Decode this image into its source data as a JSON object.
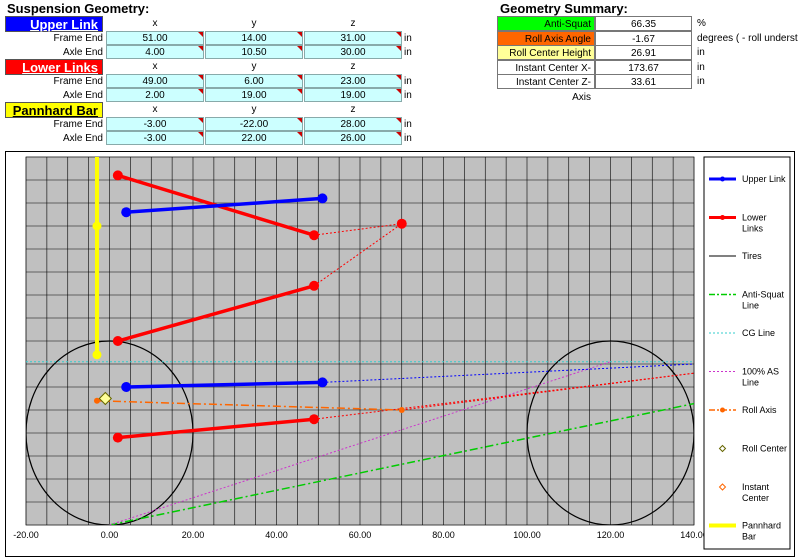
{
  "sheet": {
    "title": "Suspension Geometry:",
    "summary_title": "Geometry Summary:",
    "col_headers": [
      "x",
      "y",
      "z"
    ],
    "unit_in": "in",
    "upper_link": {
      "label": "Upper Link",
      "color": "#0000ff",
      "frame_label": "Frame End",
      "axle_label": "Axle End",
      "frame": [
        "51.00",
        "14.00",
        "31.00"
      ],
      "axle": [
        "4.00",
        "10.50",
        "30.00"
      ]
    },
    "lower_links": {
      "label": "Lower Links",
      "color": "#ff0000",
      "frame_label": "Frame End",
      "axle_label": "Axle End",
      "frame": [
        "49.00",
        "6.00",
        "23.00"
      ],
      "axle": [
        "2.00",
        "19.00",
        "19.00"
      ]
    },
    "pannhard": {
      "label": "Pannhard Bar",
      "color": "#ffff00",
      "frame_label": "Frame End",
      "axle_label": "Axle End",
      "frame": [
        "-3.00",
        "-22.00",
        "28.00"
      ],
      "axle": [
        "-3.00",
        "22.00",
        "26.00"
      ]
    },
    "summary": [
      {
        "label": "Anti-Squat",
        "value": "66.35",
        "unit": "%",
        "color": "#00ff00"
      },
      {
        "label": "Roll Axis Angle",
        "value": "-1.67",
        "unit": "degrees ( - roll underst",
        "color": "#ff6600"
      },
      {
        "label": "Roll Center Height",
        "value": "26.91",
        "unit": "in",
        "color": "#ffff99"
      },
      {
        "label": "Instant Center X-Axis",
        "value": "173.67",
        "unit": "in",
        "color": "#ffffff"
      },
      {
        "label": "Instant Center Z-Axis",
        "value": "33.61",
        "unit": "in",
        "color": "#ffffff"
      }
    ]
  },
  "chart_data": {
    "type": "scatter",
    "xlim": [
      -20,
      140
    ],
    "ylim": [
      0,
      80
    ],
    "x_ticks": [
      "-20.00",
      "0.00",
      "20.00",
      "40.00",
      "60.00",
      "80.00",
      "100.00",
      "120.00",
      "140.00"
    ],
    "grid": true,
    "plot_bg": "#c0c0c0",
    "legend_position": "right",
    "series": [
      {
        "name": "Upper Link",
        "color": "#0000ff",
        "kind": "line-markers",
        "segments": [
          [
            [
              4,
              68
            ],
            [
              51,
              71
            ]
          ],
          [
            [
              4,
              30
            ],
            [
              51,
              31
            ]
          ]
        ]
      },
      {
        "name": "Lower Links",
        "color": "#ff0000",
        "kind": "line-markers",
        "segments": [
          [
            [
              2,
              76
            ],
            [
              49,
              63
            ]
          ],
          [
            [
              2,
              40
            ],
            [
              49,
              52
            ]
          ],
          [
            [
              2,
              19
            ],
            [
              49,
              23
            ]
          ]
        ]
      },
      {
        "name": "Tires",
        "color": "#000000",
        "kind": "circle",
        "circles": [
          [
            0,
            20,
            20
          ],
          [
            120,
            20,
            20
          ]
        ]
      },
      {
        "name": "Anti-Squat Line",
        "color": "#00cc00",
        "kind": "dashdot",
        "segments": [
          [
            [
              0,
              0
            ],
            [
              140,
              26.4
            ]
          ]
        ]
      },
      {
        "name": "CG Line",
        "color": "#00cccc",
        "kind": "dotted",
        "segments": [
          [
            [
              -20,
              35.5
            ],
            [
              140,
              35.5
            ]
          ]
        ]
      },
      {
        "name": "100% AS Line",
        "color": "#cc00cc",
        "kind": "dotted",
        "segments": [
          [
            [
              0,
              0
            ],
            [
              120,
              35.5
            ]
          ]
        ]
      },
      {
        "name": "Roll Axis",
        "color": "#ff6600",
        "kind": "dashdot-markers",
        "points": [
          [
            -3,
            27
          ],
          [
            70,
            25
          ]
        ]
      },
      {
        "name": "Roll Center",
        "color": "#666600",
        "kind": "diamond",
        "points": [
          [
            -1,
            27.5
          ]
        ]
      },
      {
        "name": "Instant Center",
        "color": "#ff6600",
        "kind": "diamond-small",
        "points": []
      },
      {
        "name": "Pannhard Bar",
        "color": "#ffff00",
        "kind": "thick-line",
        "segments": [
          [
            [
              -3,
              88
            ],
            [
              -3,
              37
            ]
          ]
        ],
        "points": [
          [
            -3,
            88
          ],
          [
            -3,
            65
          ],
          [
            -3,
            37
          ]
        ]
      }
    ],
    "extra_lines": [
      {
        "color": "#ff0000",
        "points": [
          [
            49,
            63
          ],
          [
            70,
            65.5
          ]
        ]
      },
      {
        "color": "#ff0000",
        "points": [
          [
            49,
            52
          ],
          [
            70,
            65.5
          ]
        ]
      },
      {
        "color": "#ff0000",
        "points": [
          [
            49,
            23
          ],
          [
            140,
            33
          ]
        ]
      },
      {
        "color": "#0000ff",
        "points": [
          [
            51,
            31
          ],
          [
            140,
            35
          ]
        ]
      },
      {
        "color": "#ff0000",
        "points": [
          [
            70,
            25
          ],
          [
            140,
            33
          ]
        ]
      }
    ],
    "ic_point": [
      70,
      65.5
    ]
  }
}
